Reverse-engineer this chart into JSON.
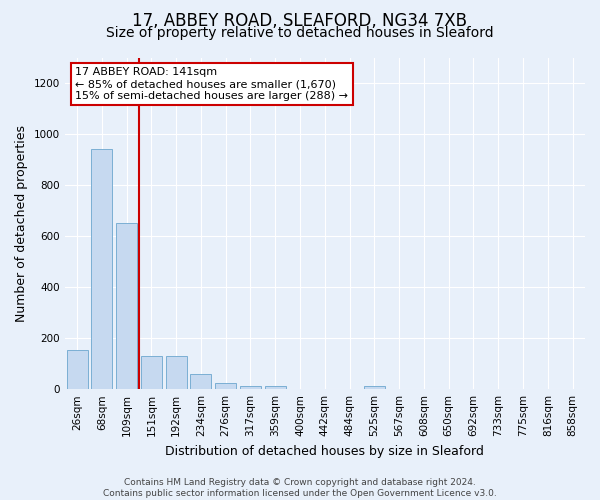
{
  "title1": "17, ABBEY ROAD, SLEAFORD, NG34 7XB",
  "title2": "Size of property relative to detached houses in Sleaford",
  "xlabel": "Distribution of detached houses by size in Sleaford",
  "ylabel": "Number of detached properties",
  "categories": [
    "26sqm",
    "68sqm",
    "109sqm",
    "151sqm",
    "192sqm",
    "234sqm",
    "276sqm",
    "317sqm",
    "359sqm",
    "400sqm",
    "442sqm",
    "484sqm",
    "525sqm",
    "567sqm",
    "608sqm",
    "650sqm",
    "692sqm",
    "733sqm",
    "775sqm",
    "816sqm",
    "858sqm"
  ],
  "values": [
    155,
    940,
    650,
    130,
    130,
    60,
    25,
    12,
    12,
    0,
    0,
    0,
    12,
    0,
    0,
    0,
    0,
    0,
    0,
    0,
    0
  ],
  "bar_color": "#c6d9f0",
  "bar_edge_color": "#7bafd4",
  "vline_color": "#cc0000",
  "annotation_line1": "17 ABBEY ROAD: 141sqm",
  "annotation_line2": "← 85% of detached houses are smaller (1,670)",
  "annotation_line3": "15% of semi-detached houses are larger (288) →",
  "annotation_box_color": "#ffffff",
  "annotation_box_edge_color": "#cc0000",
  "ylim": [
    0,
    1300
  ],
  "yticks": [
    0,
    200,
    400,
    600,
    800,
    1000,
    1200
  ],
  "bg_color": "#e8f0fa",
  "grid_color": "#ffffff",
  "footer": "Contains HM Land Registry data © Crown copyright and database right 2024.\nContains public sector information licensed under the Open Government Licence v3.0.",
  "title1_fontsize": 12,
  "title2_fontsize": 10,
  "xlabel_fontsize": 9,
  "ylabel_fontsize": 9,
  "tick_fontsize": 7.5,
  "annotation_fontsize": 8,
  "footer_fontsize": 6.5
}
